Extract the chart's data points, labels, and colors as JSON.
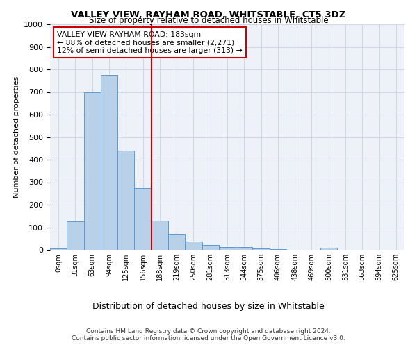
{
  "title1": "VALLEY VIEW, RAYHAM ROAD, WHITSTABLE, CT5 3DZ",
  "title2": "Size of property relative to detached houses in Whitstable",
  "xlabel": "Distribution of detached houses by size in Whitstable",
  "ylabel": "Number of detached properties",
  "footer1": "Contains HM Land Registry data © Crown copyright and database right 2024.",
  "footer2": "Contains public sector information licensed under the Open Government Licence v3.0.",
  "bin_labels": [
    "0sqm",
    "31sqm",
    "63sqm",
    "94sqm",
    "125sqm",
    "156sqm",
    "188sqm",
    "219sqm",
    "250sqm",
    "281sqm",
    "313sqm",
    "344sqm",
    "375sqm",
    "406sqm",
    "438sqm",
    "469sqm",
    "500sqm",
    "531sqm",
    "563sqm",
    "594sqm",
    "625sqm"
  ],
  "bar_heights": [
    5,
    125,
    700,
    775,
    440,
    275,
    130,
    70,
    38,
    22,
    12,
    12,
    5,
    2,
    0,
    0,
    8,
    0,
    0,
    0,
    0
  ],
  "bar_color": "#b8d0e8",
  "bar_edge_color": "#5b9bd5",
  "vline_x_index": 6,
  "vline_color": "#cc0000",
  "annotation_text": "VALLEY VIEW RAYHAM ROAD: 183sqm\n← 88% of detached houses are smaller (2,271)\n12% of semi-detached houses are larger (313) →",
  "annotation_box_color": "#cc0000",
  "ylim": [
    0,
    1000
  ],
  "yticks": [
    0,
    100,
    200,
    300,
    400,
    500,
    600,
    700,
    800,
    900,
    1000
  ],
  "grid_color": "#d0d8e8",
  "background_color": "#eef2f8"
}
